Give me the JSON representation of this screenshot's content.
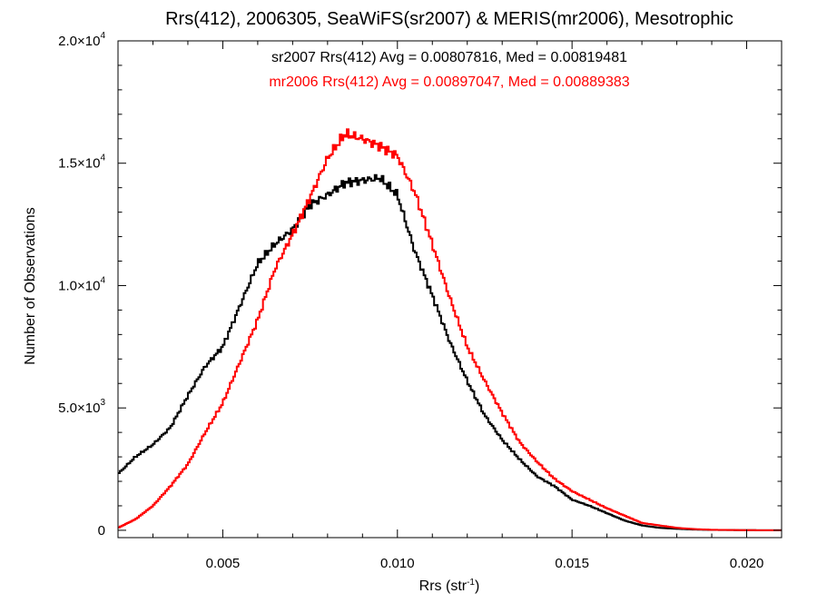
{
  "chart_data": {
    "type": "line",
    "title": "Rrs(412), 2006305, SeaWiFS(sr2007) & MERIS(mr2006), Mesotrophic",
    "xlabel": {
      "base": "Rrs (str",
      "sup": "-1",
      "tail": ")"
    },
    "ylabel": "Number of Observations",
    "xlim": [
      0.002,
      0.021
    ],
    "ylim": [
      -300,
      20000
    ],
    "x_ticks": [
      {
        "value": 0.005,
        "label": "0.005"
      },
      {
        "value": 0.01,
        "label": "0.010"
      },
      {
        "value": 0.015,
        "label": "0.015"
      },
      {
        "value": 0.02,
        "label": "0.020"
      }
    ],
    "y_ticks": [
      {
        "value": 0,
        "base": "0",
        "sup": ""
      },
      {
        "value": 5000,
        "base": "5.0×10",
        "sup": "3"
      },
      {
        "value": 10000,
        "base": "1.0×10",
        "sup": "4"
      },
      {
        "value": 15000,
        "base": "1.5×10",
        "sup": "4"
      },
      {
        "value": 20000,
        "base": "2.0×10",
        "sup": "4"
      }
    ],
    "annotations": [
      {
        "text": "sr2007 Rrs(412) Avg = 0.00807816, Med = 0.00819481",
        "color": "#000000"
      },
      {
        "text": "mr2006 Rrs(412) Avg = 0.00897047, Med = 0.00889383",
        "color": "#ff0000"
      }
    ],
    "series": [
      {
        "name": "sr2007",
        "color": "#000000",
        "x": [
          0.002,
          0.0025,
          0.003,
          0.0035,
          0.004,
          0.0045,
          0.005,
          0.0055,
          0.006,
          0.0065,
          0.007,
          0.0075,
          0.008,
          0.0085,
          0.009,
          0.0095,
          0.01,
          0.0105,
          0.011,
          0.0115,
          0.012,
          0.0125,
          0.013,
          0.0135,
          0.014,
          0.0145,
          0.015,
          0.0155,
          0.016,
          0.0165,
          0.017,
          0.0175,
          0.018,
          0.0185,
          0.019,
          0.02,
          0.021
        ],
        "y": [
          2300,
          3000,
          3500,
          4200,
          5500,
          6700,
          7500,
          9200,
          10900,
          11700,
          12300,
          13300,
          13700,
          14200,
          14300,
          14400,
          13700,
          11400,
          9600,
          7700,
          6100,
          4700,
          3700,
          2900,
          2200,
          1800,
          1250,
          1000,
          700,
          400,
          200,
          100,
          60,
          30,
          15,
          5,
          0
        ]
      },
      {
        "name": "mr2006",
        "color": "#ff0000",
        "x": [
          0.002,
          0.0025,
          0.003,
          0.0035,
          0.004,
          0.0045,
          0.005,
          0.0055,
          0.006,
          0.0065,
          0.007,
          0.0075,
          0.008,
          0.0085,
          0.009,
          0.0095,
          0.01,
          0.0105,
          0.011,
          0.0115,
          0.012,
          0.0125,
          0.013,
          0.0135,
          0.014,
          0.0145,
          0.015,
          0.0155,
          0.016,
          0.0165,
          0.017,
          0.0175,
          0.018,
          0.0185,
          0.019,
          0.02,
          0.021
        ],
        "y": [
          100,
          450,
          1000,
          1800,
          2700,
          4000,
          5200,
          6900,
          8600,
          10700,
          12100,
          13600,
          15200,
          16200,
          16000,
          15700,
          15300,
          13800,
          11700,
          9500,
          7500,
          6100,
          4800,
          3600,
          2800,
          2100,
          1600,
          1250,
          900,
          600,
          300,
          200,
          100,
          50,
          20,
          5,
          0
        ]
      }
    ]
  }
}
